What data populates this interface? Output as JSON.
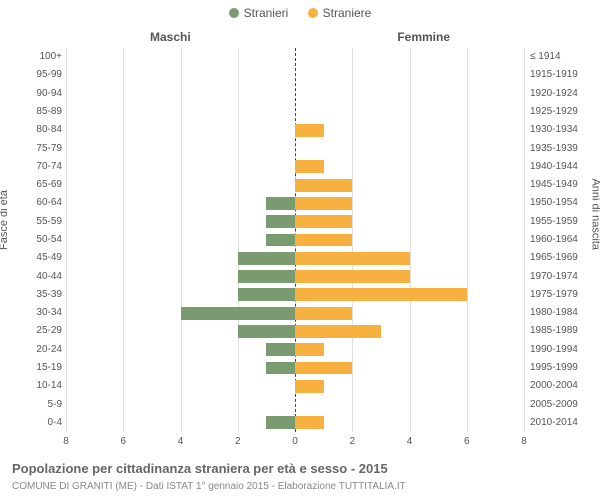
{
  "chart": {
    "type": "population-pyramid",
    "background_color": "#ffffff",
    "grid_color": "#e0e0e0",
    "center_line_color": "#404040",
    "text_color": "#555555",
    "legend": [
      {
        "label": "Stranieri",
        "color": "#799b6f"
      },
      {
        "label": "Straniere",
        "color": "#f7b141"
      }
    ],
    "header_left": "Maschi",
    "header_right": "Femmine",
    "yaxis_left_title": "Fasce di età",
    "yaxis_right_title": "Anni di nascita",
    "x_max": 8,
    "x_ticks": [
      8,
      6,
      4,
      2,
      0,
      2,
      4,
      6,
      8
    ],
    "male_color": "#799b6f",
    "female_color": "#f7b141",
    "rows": [
      {
        "age": "100+",
        "birth": "≤ 1914",
        "m": 0,
        "f": 0
      },
      {
        "age": "95-99",
        "birth": "1915-1919",
        "m": 0,
        "f": 0
      },
      {
        "age": "90-94",
        "birth": "1920-1924",
        "m": 0,
        "f": 0
      },
      {
        "age": "85-89",
        "birth": "1925-1929",
        "m": 0,
        "f": 0
      },
      {
        "age": "80-84",
        "birth": "1930-1934",
        "m": 0,
        "f": 1
      },
      {
        "age": "75-79",
        "birth": "1935-1939",
        "m": 0,
        "f": 0
      },
      {
        "age": "70-74",
        "birth": "1940-1944",
        "m": 0,
        "f": 1
      },
      {
        "age": "65-69",
        "birth": "1945-1949",
        "m": 0,
        "f": 2
      },
      {
        "age": "60-64",
        "birth": "1950-1954",
        "m": 1,
        "f": 2
      },
      {
        "age": "55-59",
        "birth": "1955-1959",
        "m": 1,
        "f": 2
      },
      {
        "age": "50-54",
        "birth": "1960-1964",
        "m": 1,
        "f": 2
      },
      {
        "age": "45-49",
        "birth": "1965-1969",
        "m": 2,
        "f": 4
      },
      {
        "age": "40-44",
        "birth": "1970-1974",
        "m": 2,
        "f": 4
      },
      {
        "age": "35-39",
        "birth": "1975-1979",
        "m": 2,
        "f": 6
      },
      {
        "age": "30-34",
        "birth": "1980-1984",
        "m": 4,
        "f": 2
      },
      {
        "age": "25-29",
        "birth": "1985-1989",
        "m": 2,
        "f": 3
      },
      {
        "age": "20-24",
        "birth": "1990-1994",
        "m": 1,
        "f": 1
      },
      {
        "age": "15-19",
        "birth": "1995-1999",
        "m": 1,
        "f": 2
      },
      {
        "age": "10-14",
        "birth": "2000-2004",
        "m": 0,
        "f": 1
      },
      {
        "age": "5-9",
        "birth": "2005-2009",
        "m": 0,
        "f": 0
      },
      {
        "age": "0-4",
        "birth": "2010-2014",
        "m": 1,
        "f": 1
      }
    ],
    "title_main": "Popolazione per cittadinanza straniera per età e sesso - 2015",
    "title_sub": "COMUNE DI GRANITI (ME) - Dati ISTAT 1° gennaio 2015 - Elaborazione TUTTITALIA.IT"
  }
}
